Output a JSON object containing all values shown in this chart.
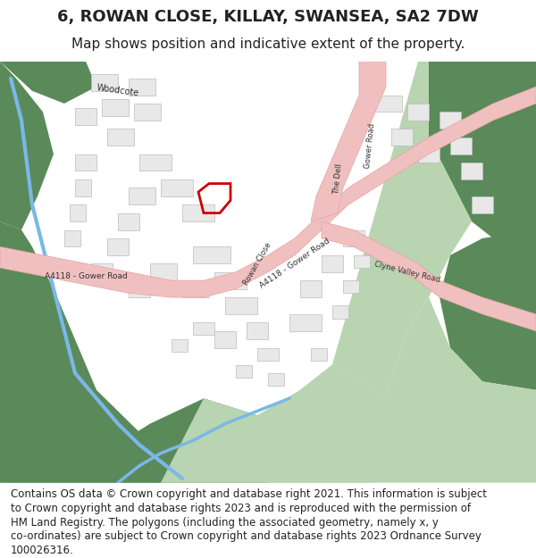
{
  "title": "6, ROWAN CLOSE, KILLAY, SWANSEA, SA2 7DW",
  "subtitle": "Map shows position and indicative extent of the property.",
  "footer_lines": [
    "Contains OS data © Crown copyright and database right 2021. This information is subject",
    "to Crown copyright and database rights 2023 and is reproduced with the permission of",
    "HM Land Registry. The polygons (including the associated geometry, namely x, y",
    "co-ordinates) are subject to Crown copyright and database rights 2023 Ordnance Survey",
    "100026316."
  ],
  "map_bg": "#ffffff",
  "green_dark": "#5a8a5a",
  "green_light": "#b8d4b0",
  "road_color": "#f0c0c0",
  "road_border": "#e8a0a0",
  "building_fill": "#e8e8e8",
  "building_stroke": "#bbbbbb",
  "water_color": "#7ab8e8",
  "highlight_color": "#cc0000",
  "text_color": "#222222",
  "title_fontsize": 13,
  "subtitle_fontsize": 11,
  "footer_fontsize": 8.5
}
